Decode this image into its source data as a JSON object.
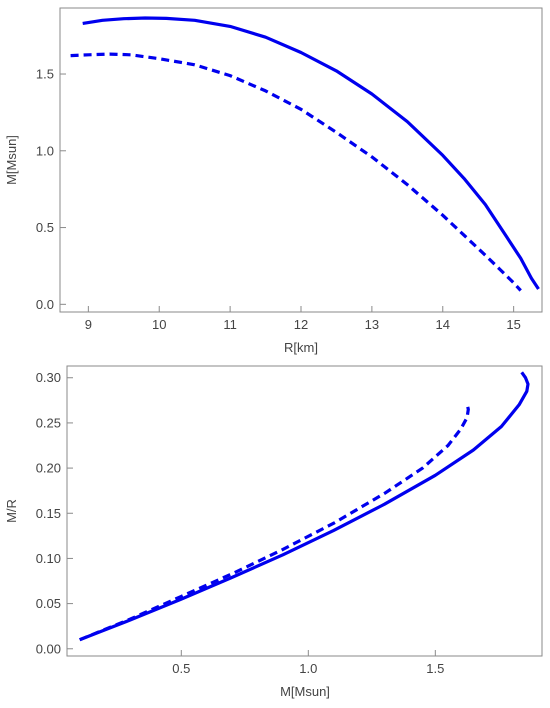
{
  "chart_data": [
    {
      "type": "line",
      "xlabel": "R[km]",
      "ylabel": "M[Msun]",
      "xlim": [
        8.6,
        15.4
      ],
      "ylim": [
        -0.05,
        1.93
      ],
      "xticks": [
        9,
        10,
        11,
        12,
        13,
        14,
        15
      ],
      "yticks": [
        0.0,
        0.5,
        1.0,
        1.5
      ],
      "xtick_labels": [
        "9",
        "10",
        "11",
        "12",
        "13",
        "14",
        "15"
      ],
      "ytick_labels": [
        "0.0",
        "0.5",
        "1.0",
        "1.5"
      ],
      "grid": false,
      "color": "#0000ee",
      "series": [
        {
          "style": "solid",
          "x": [
            8.92,
            9.2,
            9.5,
            9.8,
            10.1,
            10.5,
            11.0,
            11.5,
            12.0,
            12.5,
            13.0,
            13.5,
            14.0,
            14.3,
            14.6,
            14.9,
            15.1,
            15.25,
            15.35
          ],
          "y": [
            1.83,
            1.85,
            1.86,
            1.865,
            1.862,
            1.85,
            1.81,
            1.74,
            1.64,
            1.52,
            1.37,
            1.19,
            0.97,
            0.82,
            0.65,
            0.44,
            0.3,
            0.17,
            0.1
          ]
        },
        {
          "style": "dashed",
          "x": [
            8.75,
            9.0,
            9.3,
            9.6,
            10.0,
            10.5,
            11.0,
            11.5,
            12.0,
            12.5,
            13.0,
            13.5,
            14.0,
            14.3,
            14.6,
            14.8,
            15.0,
            15.1
          ],
          "y": [
            1.62,
            1.625,
            1.63,
            1.625,
            1.6,
            1.56,
            1.49,
            1.39,
            1.27,
            1.12,
            0.96,
            0.78,
            0.58,
            0.45,
            0.32,
            0.23,
            0.14,
            0.09
          ]
        }
      ]
    },
    {
      "type": "line",
      "xlabel": "M[Msun]",
      "ylabel": "M/R",
      "xlim": [
        0.05,
        1.92
      ],
      "ylim": [
        -0.008,
        0.313
      ],
      "xticks": [
        0.5,
        1.0,
        1.5
      ],
      "yticks": [
        0.0,
        0.05,
        0.1,
        0.15,
        0.2,
        0.25,
        0.3
      ],
      "xtick_labels": [
        "0.5",
        "1.0",
        "1.5"
      ],
      "ytick_labels": [
        "0.00",
        "0.05",
        "0.10",
        "0.15",
        "0.20",
        "0.25",
        "0.30"
      ],
      "grid": false,
      "color": "#0000ee",
      "series": [
        {
          "style": "solid",
          "x": [
            0.1,
            0.3,
            0.5,
            0.7,
            0.9,
            1.1,
            1.3,
            1.5,
            1.65,
            1.76,
            1.83,
            1.86,
            1.865,
            1.855,
            1.84
          ],
          "y": [
            0.01,
            0.032,
            0.055,
            0.079,
            0.104,
            0.131,
            0.16,
            0.192,
            0.22,
            0.246,
            0.27,
            0.285,
            0.293,
            0.3,
            0.306
          ]
        },
        {
          "style": "dashed",
          "x": [
            0.1,
            0.3,
            0.5,
            0.7,
            0.9,
            1.1,
            1.3,
            1.45,
            1.55,
            1.6,
            1.625,
            1.63,
            1.625
          ],
          "y": [
            0.01,
            0.033,
            0.058,
            0.083,
            0.11,
            0.139,
            0.172,
            0.2,
            0.225,
            0.243,
            0.256,
            0.265,
            0.271
          ]
        }
      ]
    }
  ]
}
